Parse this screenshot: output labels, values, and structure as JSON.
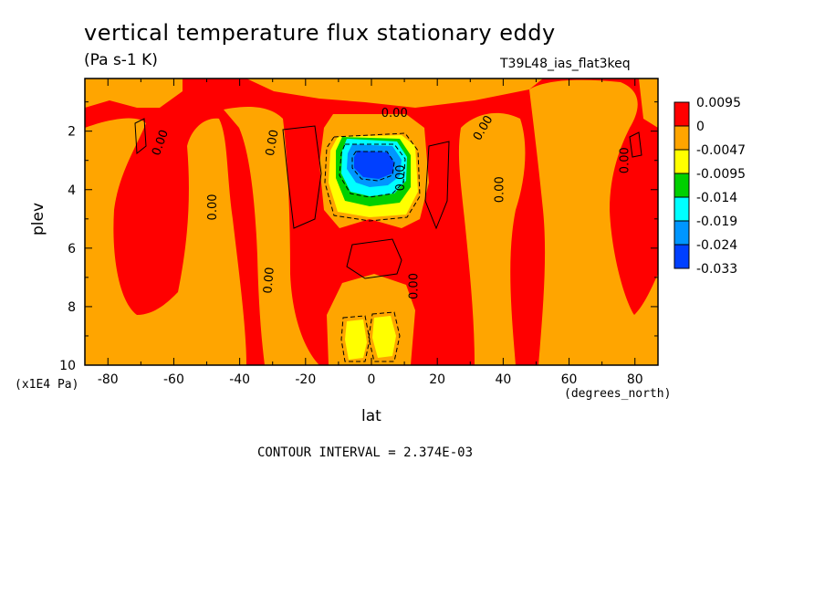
{
  "chart_data": {
    "type": "heatmap",
    "title": "vertical temperature flux stationary eddy",
    "units": "(Pa s-1 K)",
    "run_id": "T39L48_ias_flat3keq",
    "xlabel": "lat",
    "x_unit": "(degrees_north)",
    "ylabel": "plev",
    "y_unit": "(x1E4 Pa)",
    "contour_interval_text": "CONTOUR INTERVAL = 2.374E-03",
    "xlim": [
      -87,
      87
    ],
    "ylim": [
      10,
      0.2
    ],
    "x_ticks": [
      "-80",
      "-60",
      "-40",
      "-20",
      "0",
      "20",
      "40",
      "60",
      "80"
    ],
    "x_tick_values": [
      -80,
      -60,
      -40,
      -20,
      0,
      20,
      40,
      60,
      80
    ],
    "y_ticks": [
      "2",
      "4",
      "6",
      "8",
      "10"
    ],
    "y_tick_values": [
      2,
      4,
      6,
      8,
      10
    ],
    "contour_labels": [
      "0.00",
      "0.00",
      "0.00",
      "0.00",
      "0.00",
      "0.00",
      "0.00",
      "0.00",
      "0.00",
      "0.00"
    ],
    "legend": {
      "placement": "right",
      "levels": [
        "0.0095",
        "0",
        "-0.0047",
        "-0.0095",
        "-0.014",
        "-0.019",
        "-0.024",
        "-0.033"
      ],
      "colors": [
        "#ff0000",
        "#ffa500",
        "#ffff00",
        "#00d000",
        "#00ffff",
        "#0096ff",
        "#0040ff"
      ]
    },
    "colors": {
      "positive": "#ff0000",
      "near_zero": "#ffa500",
      "neg1": "#ffff00",
      "neg2": "#00d000",
      "neg3": "#00ffff",
      "neg4": "#0096ff",
      "neg5": "#0040ff"
    }
  }
}
